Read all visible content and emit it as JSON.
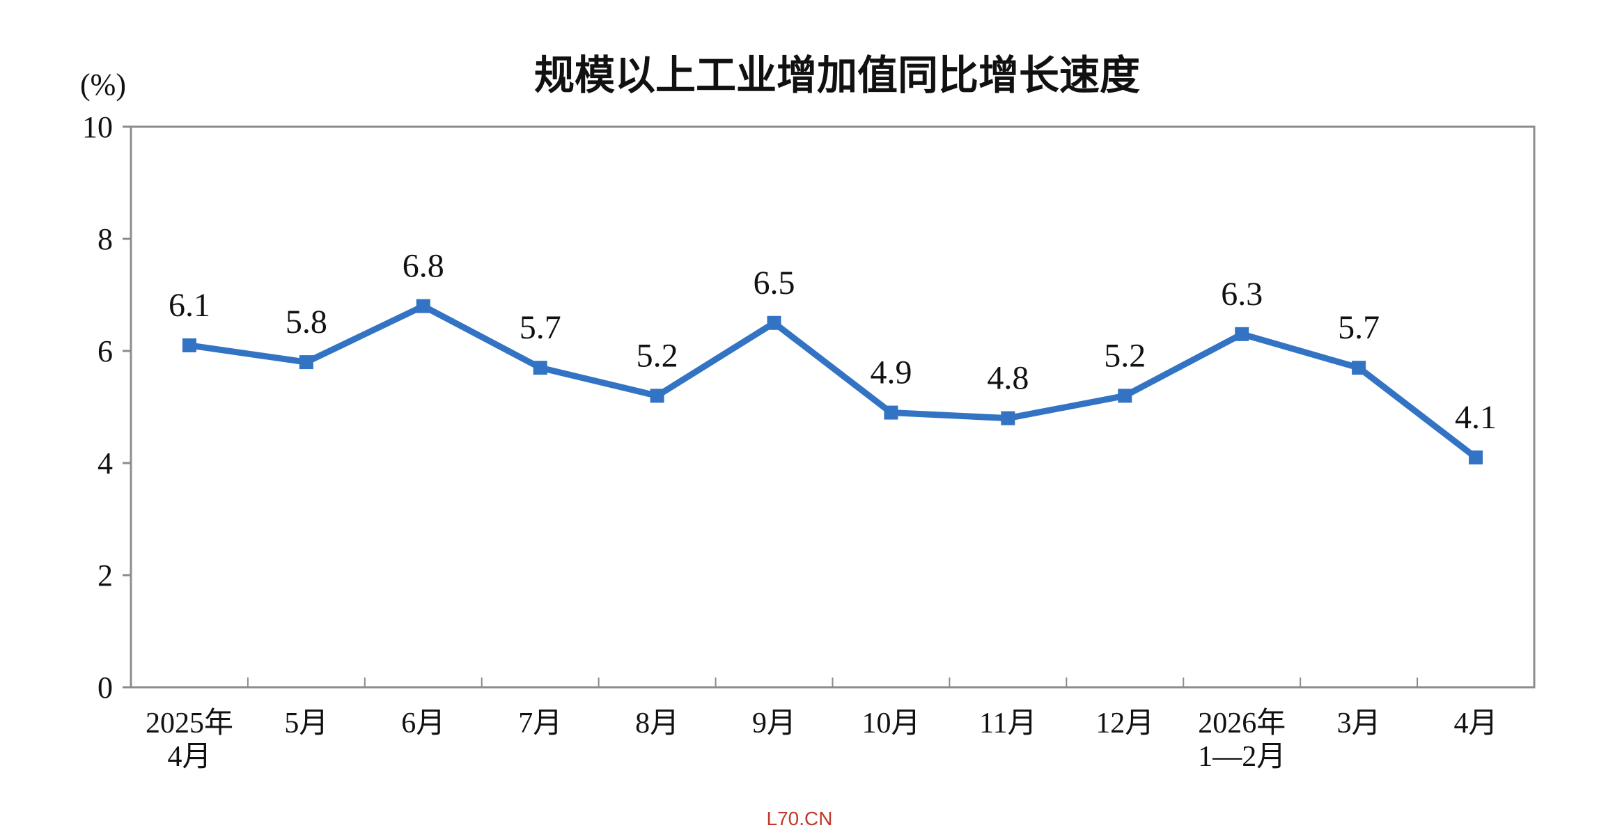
{
  "chart_data": {
    "type": "line",
    "title": "规模以上工业增加值同比增长速度",
    "ylabel": "(%)",
    "xlabel": "",
    "ylim": [
      0,
      10
    ],
    "yticks": [
      0,
      2,
      4,
      6,
      8,
      10
    ],
    "grid": false,
    "legend": "none",
    "categories": [
      [
        "2025年",
        "4月"
      ],
      [
        "5月"
      ],
      [
        "6月"
      ],
      [
        "7月"
      ],
      [
        "8月"
      ],
      [
        "9月"
      ],
      [
        "10月"
      ],
      [
        "11月"
      ],
      [
        "12月"
      ],
      [
        "2026年",
        "1—2月"
      ],
      [
        "3月"
      ],
      [
        "4月"
      ]
    ],
    "series": [
      {
        "values": [
          6.1,
          5.8,
          6.8,
          5.7,
          5.2,
          6.5,
          4.9,
          4.8,
          5.2,
          6.3,
          5.7,
          4.1
        ],
        "labels": [
          "6.1",
          "5.8",
          "6.8",
          "5.7",
          "5.2",
          "6.5",
          "4.9",
          "4.8",
          "5.2",
          "6.3",
          "5.7",
          "4.1"
        ],
        "color": "#3373c4"
      }
    ]
  },
  "watermark": "L70.CN",
  "colors": {
    "axis": "#8c8c8c",
    "text": "#111111",
    "watermark": "#c0392b"
  }
}
